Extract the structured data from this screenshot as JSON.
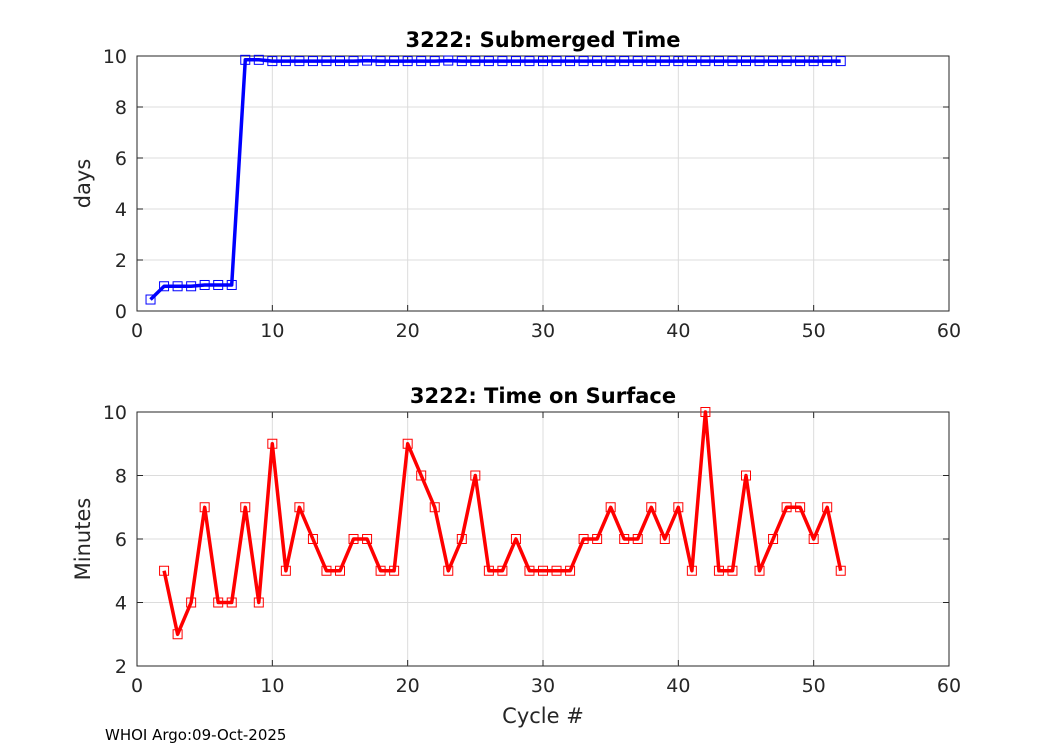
{
  "chart_data": [
    {
      "type": "line",
      "title": "3222: Submerged Time",
      "xlabel": "",
      "ylabel": "days",
      "xlim": [
        0,
        60
      ],
      "ylim": [
        0,
        10
      ],
      "xticks": [
        0,
        10,
        20,
        30,
        40,
        50,
        60
      ],
      "yticks": [
        0,
        2,
        4,
        6,
        8,
        10
      ],
      "grid": true,
      "color": "#0000ff",
      "marker": "square",
      "x": [
        1,
        2,
        3,
        4,
        5,
        6,
        7,
        8,
        9,
        10,
        11,
        12,
        13,
        14,
        15,
        16,
        17,
        18,
        19,
        20,
        21,
        22,
        23,
        24,
        25,
        26,
        27,
        28,
        29,
        30,
        31,
        32,
        33,
        34,
        35,
        36,
        37,
        38,
        39,
        40,
        41,
        42,
        43,
        44,
        45,
        46,
        47,
        48,
        49,
        50,
        51,
        52
      ],
      "y": [
        0.45,
        0.97,
        0.97,
        0.97,
        1.02,
        1.02,
        1.02,
        9.85,
        9.85,
        9.8,
        9.8,
        9.8,
        9.8,
        9.8,
        9.8,
        9.8,
        9.82,
        9.8,
        9.8,
        9.8,
        9.8,
        9.8,
        9.82,
        9.8,
        9.8,
        9.8,
        9.8,
        9.8,
        9.8,
        9.8,
        9.8,
        9.8,
        9.8,
        9.8,
        9.8,
        9.8,
        9.8,
        9.8,
        9.8,
        9.8,
        9.8,
        9.8,
        9.8,
        9.8,
        9.8,
        9.8,
        9.8,
        9.8,
        9.8,
        9.8,
        9.8,
        9.8
      ]
    },
    {
      "type": "line",
      "title": "3222: Time on Surface",
      "xlabel": "Cycle #",
      "ylabel": "Minutes",
      "xlim": [
        0,
        60
      ],
      "ylim": [
        2,
        10
      ],
      "xticks": [
        0,
        10,
        20,
        30,
        40,
        50,
        60
      ],
      "yticks": [
        2,
        4,
        6,
        8,
        10
      ],
      "grid": true,
      "color": "#ff0000",
      "marker": "square",
      "x": [
        2,
        3,
        4,
        5,
        6,
        7,
        8,
        9,
        10,
        11,
        12,
        13,
        14,
        15,
        16,
        17,
        18,
        19,
        20,
        21,
        22,
        23,
        24,
        25,
        26,
        27,
        28,
        29,
        30,
        31,
        32,
        33,
        34,
        35,
        36,
        37,
        38,
        39,
        40,
        41,
        42,
        43,
        44,
        45,
        46,
        47,
        48,
        49,
        50,
        51,
        52
      ],
      "y": [
        5,
        3,
        4,
        7,
        4,
        4,
        7,
        4,
        9,
        5,
        7,
        6,
        5,
        5,
        6,
        6,
        5,
        5,
        9,
        8,
        7,
        5,
        6,
        8,
        5,
        5,
        6,
        5,
        5,
        5,
        5,
        6,
        6,
        7,
        6,
        6,
        7,
        6,
        7,
        5,
        10,
        5,
        5,
        8,
        5,
        6,
        7,
        7,
        6,
        7,
        5
      ]
    }
  ],
  "footer": "WHOI Argo:09-Oct-2025"
}
